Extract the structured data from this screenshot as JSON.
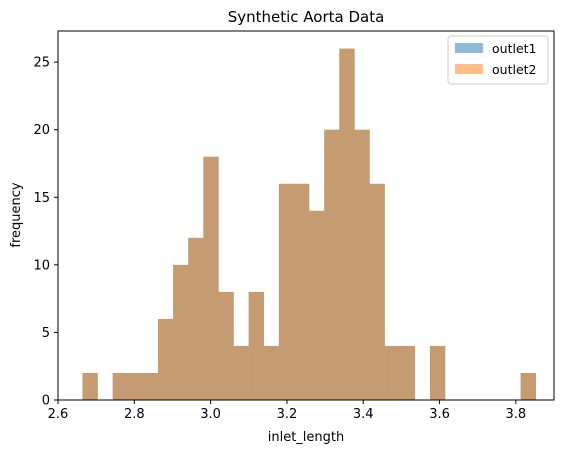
{
  "chart_data": {
    "type": "bar",
    "title": "Synthetic Aorta Data",
    "xlabel": "inlet_length",
    "ylabel": "frequency",
    "xlim": [
      2.6,
      3.9
    ],
    "ylim": [
      0,
      27.3
    ],
    "xticks": [
      2.6,
      2.8,
      3.0,
      3.2,
      3.4,
      3.6,
      3.8
    ],
    "yticks": [
      0,
      5,
      10,
      15,
      20,
      25
    ],
    "bin_start": 2.664,
    "bin_width": 0.0396,
    "counts": [
      2,
      0,
      2,
      2,
      2,
      6,
      10,
      12,
      18,
      8,
      4,
      8,
      4,
      16,
      16,
      14,
      20,
      26,
      20,
      16,
      4,
      4,
      0,
      4,
      0,
      0,
      0,
      0,
      0,
      2
    ],
    "series": [
      {
        "name": "outlet1",
        "color": "#1f77b4",
        "alpha": 0.5
      },
      {
        "name": "outlet2",
        "color": "#ff7f0e",
        "alpha": 0.5
      }
    ],
    "overlap_color": "#c59c72",
    "legend_position": "top-right",
    "grid": false
  }
}
